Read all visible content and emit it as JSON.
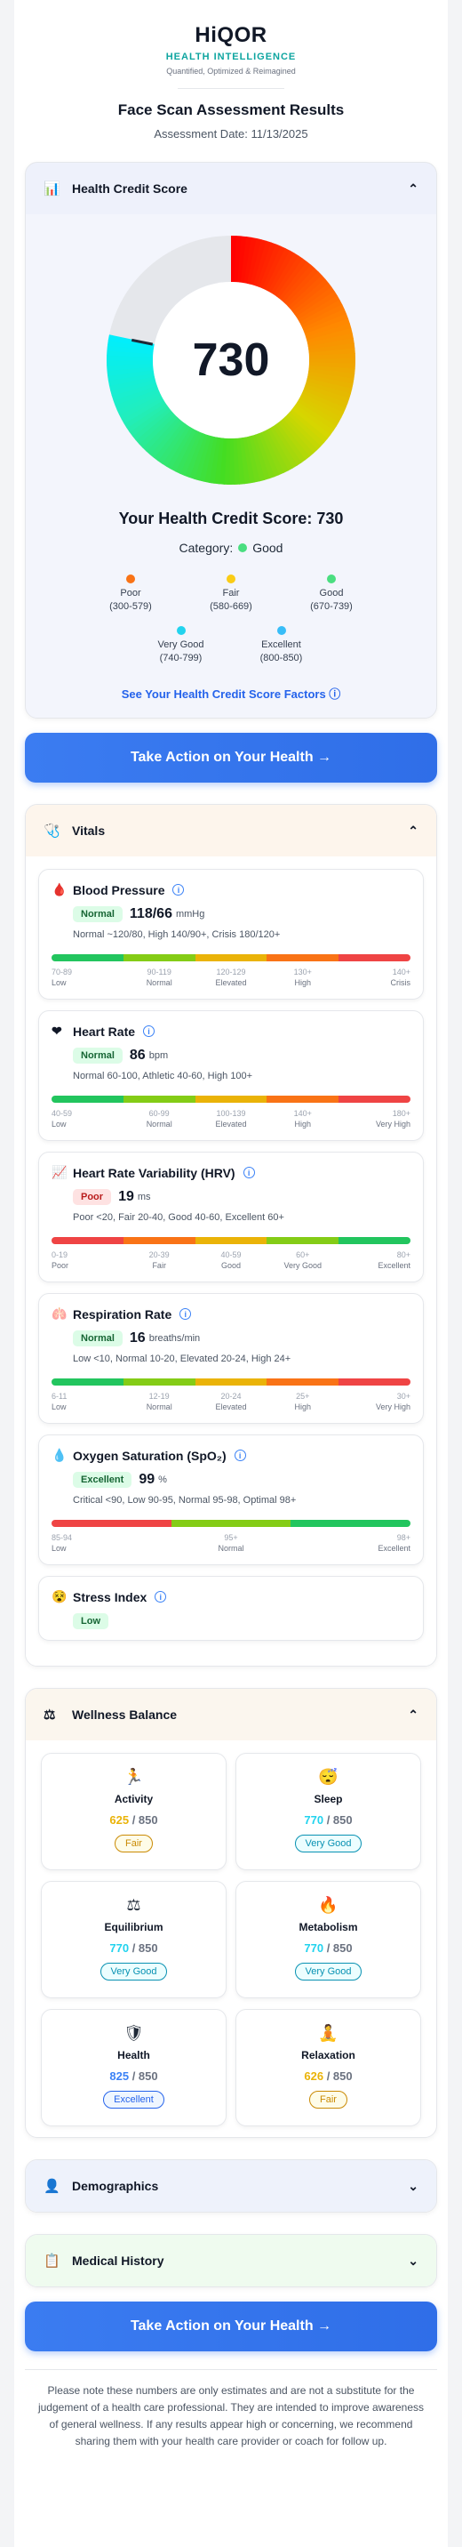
{
  "brand": {
    "name": "HiQOR",
    "subtitle": "HEALTH INTELLIGENCE",
    "tagline": "Quantified, Optimized & Reimagined"
  },
  "header": {
    "title": "Face Scan Assessment Results",
    "date": "Assessment Date: 11/13/2025"
  },
  "credit": {
    "title": "Health Credit Score",
    "score": "730",
    "score_value": 730,
    "score_min": 300,
    "score_max": 850,
    "your_score": "Your Health Credit Score: 730",
    "category_label": "Category:",
    "category": "Good",
    "category_color": "#4ade80",
    "legend": [
      {
        "label": "Poor",
        "range": "(300-579)",
        "color": "#f97316"
      },
      {
        "label": "Fair",
        "range": "(580-669)",
        "color": "#facc15"
      },
      {
        "label": "Good",
        "range": "(670-739)",
        "color": "#4ade80"
      },
      {
        "label": "Very Good",
        "range": "(740-799)",
        "color": "#22d3ee"
      },
      {
        "label": "Excellent",
        "range": "(800-850)",
        "color": "#38bdf8"
      }
    ],
    "factors_link": "See Your Health Credit Score Factors"
  },
  "cta": {
    "label": "Take Action on Your Health →"
  },
  "vitals": {
    "title": "Vitals",
    "items": [
      {
        "name": "Blood Pressure",
        "icon": "blood-drop-icon",
        "status": "Normal",
        "value": "118/66",
        "unit": "mmHg",
        "range": "Normal ~120/80, High 140/90+, Crisis 180/120+",
        "ticks": [
          [
            "70-89",
            "Low"
          ],
          [
            "90-119",
            "Normal"
          ],
          [
            "120-129",
            "Elevated"
          ],
          [
            "130+",
            "High"
          ],
          [
            "140+",
            "Crisis"
          ]
        ],
        "colors": [
          "#22c55e",
          "#84cc16",
          "#eab308",
          "#f97316",
          "#ef4444"
        ]
      },
      {
        "name": "Heart Rate",
        "icon": "heart-icon",
        "status": "Normal",
        "value": "86",
        "unit": "bpm",
        "range": "Normal 60-100, Athletic 40-60, High 100+",
        "ticks": [
          [
            "40-59",
            "Low"
          ],
          [
            "60-99",
            "Normal"
          ],
          [
            "100-139",
            "Elevated"
          ],
          [
            "140+",
            "High"
          ],
          [
            "180+",
            "Very High"
          ]
        ],
        "colors": [
          "#22c55e",
          "#84cc16",
          "#eab308",
          "#f97316",
          "#ef4444"
        ]
      },
      {
        "name": "Heart Rate Variability (HRV)",
        "icon": "chart-icon",
        "status": "Poor",
        "value": "19",
        "unit": "ms",
        "range": "Poor <20, Fair 20-40, Good 40-60, Excellent 60+",
        "ticks": [
          [
            "0-19",
            "Poor"
          ],
          [
            "20-39",
            "Fair"
          ],
          [
            "40-59",
            "Good"
          ],
          [
            "60+",
            "Very Good"
          ],
          [
            "80+",
            "Excellent"
          ]
        ],
        "colors": [
          "#ef4444",
          "#f97316",
          "#eab308",
          "#84cc16",
          "#22c55e"
        ]
      },
      {
        "name": "Respiration Rate",
        "icon": "lungs-icon",
        "status": "Normal",
        "value": "16",
        "unit": "breaths/min",
        "range": "Low <10, Normal 10-20, Elevated 20-24, High 24+",
        "ticks": [
          [
            "6-11",
            "Low"
          ],
          [
            "12-19",
            "Normal"
          ],
          [
            "20-24",
            "Elevated"
          ],
          [
            "25+",
            "High"
          ],
          [
            "30+",
            "Very High"
          ]
        ],
        "colors": [
          "#22c55e",
          "#84cc16",
          "#eab308",
          "#f97316",
          "#ef4444"
        ]
      },
      {
        "name": "Oxygen Saturation (SpO₂)",
        "icon": "oxygen-drop-icon",
        "status": "Excellent",
        "value": "99",
        "unit": "%",
        "range": "Critical <90, Low 90-95, Normal 95-98, Optimal 98+",
        "ticks": [
          [
            "85-94",
            "Low"
          ],
          [
            "95+",
            "Normal"
          ],
          [
            "98+",
            "Excellent"
          ]
        ],
        "colors": [
          "#ef4444",
          "#84cc16",
          "#22c55e"
        ]
      },
      {
        "name": "Stress Index",
        "icon": "stress-face-icon",
        "status": "Low"
      }
    ]
  },
  "wellness": {
    "title": "Wellness Balance",
    "items": [
      {
        "name": "Activity",
        "icon": "runner-icon",
        "glyph": "🏃",
        "score": "625",
        "max": "/ 850",
        "label": "Fair",
        "kind": "fair",
        "color": "#eab308"
      },
      {
        "name": "Sleep",
        "icon": "sleep-icon",
        "glyph": "😴",
        "score": "770",
        "max": "/ 850",
        "label": "Very Good",
        "kind": "vg",
        "color": "#22d3ee"
      },
      {
        "name": "Equilibrium",
        "icon": "balance-icon",
        "glyph": "⚖",
        "score": "770",
        "max": "/ 850",
        "label": "Very Good",
        "kind": "vg",
        "color": "#22d3ee"
      },
      {
        "name": "Metabolism",
        "icon": "flame-icon",
        "glyph": "🔥",
        "score": "770",
        "max": "/ 850",
        "label": "Very Good",
        "kind": "vg",
        "color": "#22d3ee"
      },
      {
        "name": "Health",
        "icon": "shield-icon",
        "glyph": "🛡",
        "score": "825",
        "max": "/ 850",
        "label": "Excellent",
        "kind": "exc",
        "color": "#3b82f6"
      },
      {
        "name": "Relaxation",
        "icon": "meditation-icon",
        "glyph": "🧘",
        "score": "626",
        "max": "/ 850",
        "label": "Fair",
        "kind": "fair",
        "color": "#eab308"
      }
    ]
  },
  "demographics": {
    "title": "Demographics"
  },
  "medical": {
    "title": "Medical History"
  },
  "disclaimer": "Please note these numbers are only estimates and are not a substitute for the judgement of a health care professional. They are intended to improve awareness of general wellness. If any results appear high or concerning, we recommend sharing them with your health care provider or coach for follow up."
}
